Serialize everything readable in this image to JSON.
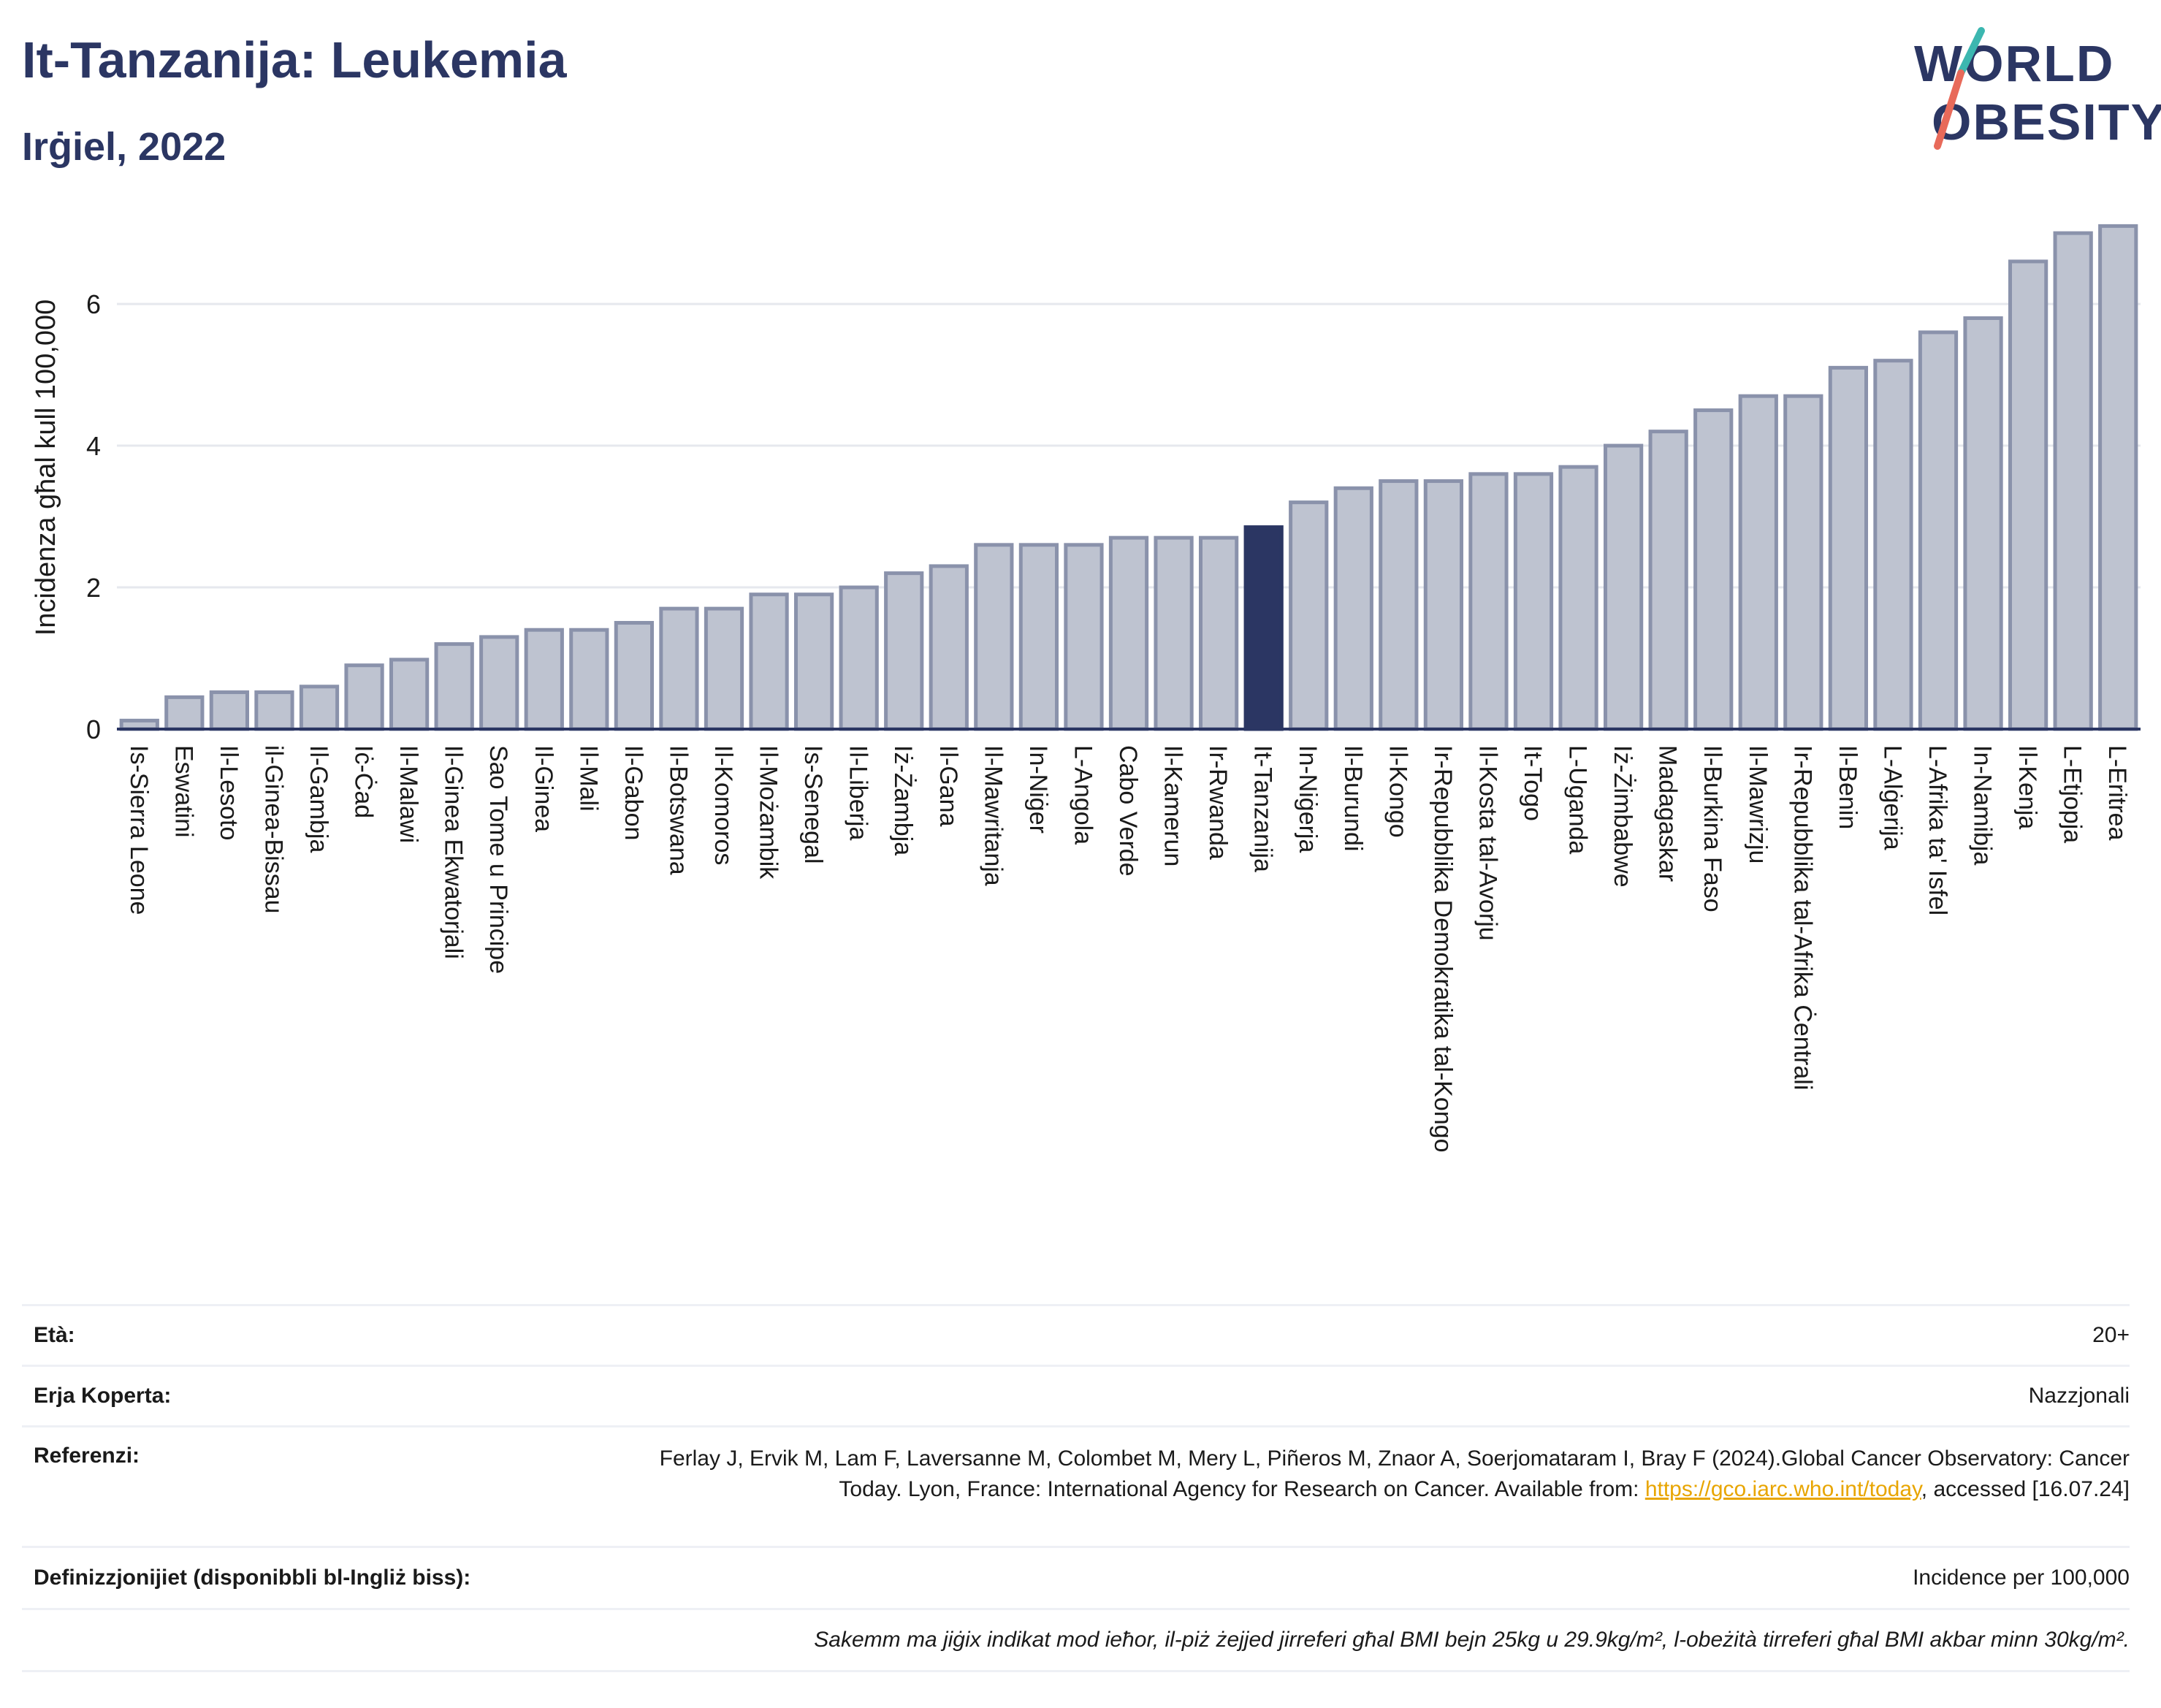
{
  "header": {
    "title": "It-Tanzanija: Leukemia",
    "subtitle": "Irġiel, 2022"
  },
  "logo": {
    "line1": "WORLD",
    "line2": "OBESITY"
  },
  "chart_data": {
    "type": "bar",
    "ylabel": "Incidenza għal kull 100,000",
    "ylim": [
      0,
      7.3
    ],
    "yticks": [
      0,
      2,
      4,
      6
    ],
    "grid": true,
    "highlight": "It-Tanzanija",
    "colors": {
      "bar": "#bec3d0",
      "bar_edge": "#8a92ab",
      "highlight": "#2b3663",
      "axis": "#2b3663",
      "grid": "#e6e8ee"
    },
    "categories": [
      "Is-Sierra Leone",
      "Eswatini",
      "Il-Lesoto",
      "il-Ginea-Bissau",
      "Il-Gambja",
      "Iċ-Ċad",
      "Il-Malawi",
      "Il-Ginea Ekwatorjali",
      "Sao Tome u Principe",
      "Il-Ginea",
      "Il-Mali",
      "Il-Gabon",
      "Il-Botswana",
      "Il-Komoros",
      "Il-Możambik",
      "Is-Senegal",
      "Il-Liberja",
      "Iż-Żambja",
      "Il-Gana",
      "Il-Mawritanja",
      "In-Niġer",
      "L-Angola",
      "Cabo Verde",
      "Il-Kamerun",
      "Ir-Rwanda",
      "It-Tanzanija",
      "In-Niġerja",
      "Il-Burundi",
      "Il-Kongo",
      "Ir-Repubblika Demokratika tal-Kongo",
      "Il-Kosta tal-Avorju",
      "It-Togo",
      "L-Uganda",
      "Iż-Żimbabwe",
      "Madagaskar",
      "Il-Burkina Faso",
      "Il-Mawrizju",
      "Ir-Repubblika tal-Afrika Ċentrali",
      "Il-Benin",
      "L-Alġerija",
      "L-Afrika ta' Isfel",
      "In-Namibja",
      "Il-Kenja",
      "L-Etjopja",
      "L-Eritrea"
    ],
    "values": [
      0.12,
      0.45,
      0.52,
      0.52,
      0.6,
      0.9,
      0.98,
      1.2,
      1.3,
      1.4,
      1.4,
      1.5,
      1.7,
      1.7,
      1.9,
      1.9,
      2.0,
      2.2,
      2.3,
      2.6,
      2.6,
      2.6,
      2.7,
      2.7,
      2.7,
      2.85,
      3.2,
      3.4,
      3.5,
      3.5,
      3.6,
      3.6,
      3.7,
      4.0,
      4.2,
      4.5,
      4.7,
      4.7,
      5.1,
      5.2,
      5.6,
      5.8,
      6.6,
      7.0,
      7.1
    ]
  },
  "meta": {
    "age_label": "Età:",
    "age_value": "20+",
    "area_label": "Erja Koperta:",
    "area_value": "Nazzjonali",
    "ref_label": "Referenzi:",
    "ref_text": "Ferlay J, Ervik M, Lam F, Laversanne M, Colombet M, Mery L, Piñeros M, Znaor A, Soerjomataram I, Bray F (2024).Global Cancer Observatory: Cancer Today. Lyon, France: International Agency for Research on Cancer. Available from: ",
    "ref_link": "https://gco.iarc.who.int/today",
    "ref_tail": ", accessed [16.07.24]",
    "def_label": "Definizzjonijiet (disponibbli bl-Ingliż biss):",
    "def_value": "Incidence per 100,000",
    "note": "Sakemm ma jiġix indikat mod ieħor, il-piż żejjed jirreferi għal BMI bejn 25kg u 29.9kg/m², l-obeżità tirreferi għal BMI akbar minn 30kg/m²."
  }
}
